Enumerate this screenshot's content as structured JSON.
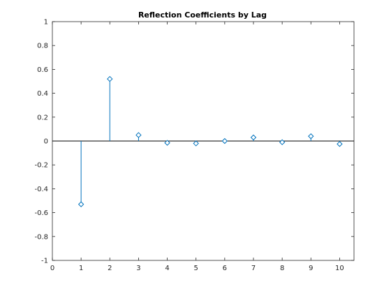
{
  "chart_data": {
    "type": "stem",
    "title": "Reflection Coefficients by Lag",
    "xlabel": "",
    "ylabel": "",
    "xlim": [
      0,
      10.5
    ],
    "ylim": [
      -1,
      1
    ],
    "xticks": [
      0,
      1,
      2,
      3,
      4,
      5,
      6,
      7,
      8,
      9,
      10
    ],
    "xtick_labels": [
      "0",
      "1",
      "2",
      "3",
      "4",
      "5",
      "6",
      "7",
      "8",
      "9",
      "10"
    ],
    "yticks": [
      -1,
      -0.8,
      -0.6,
      -0.4,
      -0.2,
      0,
      0.2,
      0.4,
      0.6,
      0.8,
      1
    ],
    "ytick_labels": [
      "-1",
      "-0.8",
      "-0.6",
      "-0.4",
      "-0.2",
      "0",
      "0.2",
      "0.4",
      "0.6",
      "0.8",
      "1"
    ],
    "grid": false,
    "baseline": 0,
    "marker": "diamond",
    "series": [
      {
        "x": [
          1,
          2,
          3,
          4,
          5,
          6,
          7,
          8,
          9,
          10
        ],
        "y": [
          -0.53,
          0.52,
          0.05,
          -0.015,
          -0.02,
          0.0,
          0.03,
          -0.01,
          0.04,
          -0.025
        ],
        "color": "#0072BD"
      }
    ]
  }
}
